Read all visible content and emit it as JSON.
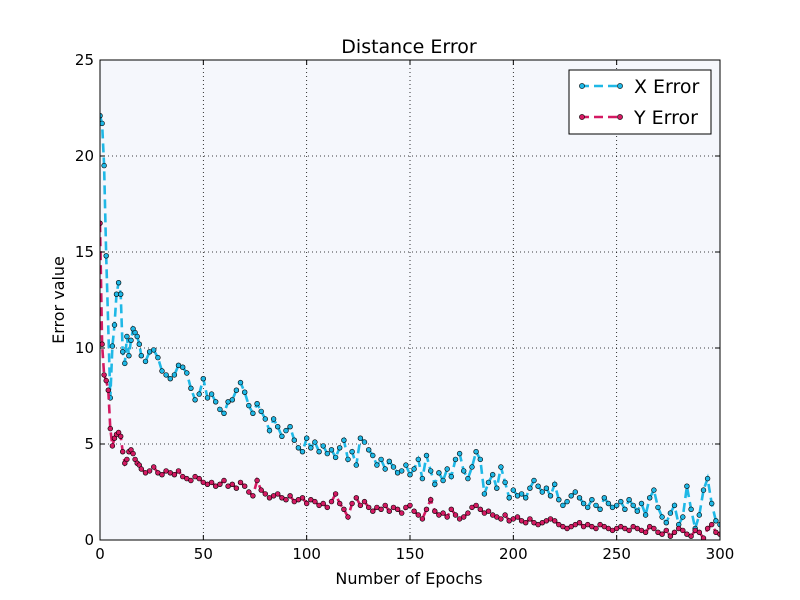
{
  "chart_data": {
    "type": "line",
    "title": "Distance Error",
    "xlabel": "Number of Epochs",
    "ylabel": "Error value",
    "xlim": [
      0,
      300
    ],
    "ylim": [
      0,
      25
    ],
    "xticks": [
      0,
      50,
      100,
      150,
      200,
      250,
      300
    ],
    "yticks": [
      0,
      5,
      10,
      15,
      20,
      25
    ],
    "grid": true,
    "legend_position": "top-right",
    "background_color": "#f5f7fc",
    "series": [
      {
        "name": "X Error",
        "color": "#1fb8e6",
        "marker_color": "#1a9cc6",
        "x": [
          0,
          1,
          2,
          3,
          5,
          6,
          7,
          8,
          9,
          10,
          11,
          12,
          13,
          14,
          15,
          16,
          17,
          18,
          19,
          20,
          22,
          24,
          26,
          28,
          30,
          32,
          34,
          36,
          38,
          40,
          42,
          44,
          46,
          48,
          50,
          52,
          54,
          56,
          58,
          60,
          62,
          64,
          66,
          68,
          70,
          72,
          74,
          76,
          78,
          80,
          82,
          84,
          86,
          88,
          90,
          92,
          94,
          96,
          98,
          100,
          102,
          104,
          106,
          108,
          110,
          112,
          114,
          116,
          118,
          120,
          122,
          124,
          126,
          128,
          130,
          132,
          134,
          136,
          138,
          140,
          142,
          144,
          146,
          148,
          150,
          152,
          154,
          156,
          158,
          160,
          162,
          164,
          166,
          168,
          170,
          172,
          174,
          176,
          178,
          180,
          182,
          184,
          186,
          188,
          190,
          192,
          194,
          196,
          198,
          200,
          202,
          204,
          206,
          208,
          210,
          212,
          214,
          216,
          218,
          220,
          222,
          224,
          226,
          228,
          230,
          232,
          234,
          236,
          238,
          240,
          242,
          244,
          246,
          248,
          250,
          252,
          254,
          256,
          258,
          260,
          262,
          264,
          266,
          268,
          270,
          272,
          274,
          276,
          278,
          280,
          282,
          284,
          286,
          288,
          290,
          292,
          294,
          296,
          298,
          300
        ],
        "values": [
          22.1,
          21.7,
          19.5,
          14.8,
          7.4,
          10.1,
          11.2,
          12.8,
          13.4,
          12.8,
          9.8,
          9.2,
          10.6,
          9.6,
          10.4,
          11.0,
          10.8,
          10.6,
          10.2,
          9.6,
          9.3,
          9.8,
          9.9,
          9.5,
          8.8,
          8.6,
          8.4,
          8.6,
          9.1,
          9.0,
          8.7,
          7.9,
          7.3,
          7.6,
          8.4,
          7.4,
          7.6,
          7.2,
          6.8,
          6.6,
          7.2,
          7.3,
          7.8,
          8.2,
          7.7,
          7.0,
          6.6,
          7.1,
          6.7,
          6.3,
          5.7,
          6.3,
          5.9,
          5.4,
          5.7,
          5.9,
          5.2,
          4.8,
          4.6,
          5.3,
          4.8,
          5.1,
          4.6,
          4.9,
          4.5,
          4.7,
          4.3,
          4.8,
          5.2,
          4.2,
          4.6,
          3.9,
          5.3,
          5.1,
          4.7,
          4.4,
          3.9,
          4.2,
          3.7,
          4.1,
          3.8,
          3.5,
          3.6,
          3.9,
          3.4,
          3.7,
          4.2,
          3.2,
          4.4,
          3.6,
          2.9,
          3.5,
          3.1,
          3.7,
          3.3,
          4.2,
          4.5,
          3.6,
          3.2,
          3.8,
          4.6,
          4.2,
          2.4,
          3.0,
          3.4,
          2.7,
          3.8,
          3.0,
          2.2,
          2.6,
          2.3,
          2.4,
          2.2,
          2.7,
          3.1,
          2.8,
          2.5,
          2.7,
          2.3,
          2.9,
          2.1,
          1.8,
          2.0,
          2.3,
          2.5,
          2.2,
          1.9,
          1.7,
          2.1,
          1.8,
          1.6,
          2.2,
          1.9,
          1.7,
          1.8,
          2.0,
          1.6,
          2.1,
          1.8,
          1.5,
          1.9,
          1.3,
          2.2,
          2.6,
          1.7,
          1.2,
          0.9,
          1.4,
          1.8,
          0.8,
          1.2,
          2.8,
          1.6,
          0.6,
          1.3,
          2.6,
          3.2,
          1.9,
          1.0,
          0.8
        ]
      },
      {
        "name": "Y Error",
        "color": "#d41a63",
        "marker_color": "#a8124c",
        "x": [
          0,
          1,
          2,
          3,
          4,
          5,
          6,
          7,
          8,
          9,
          10,
          11,
          12,
          13,
          14,
          15,
          16,
          17,
          18,
          19,
          20,
          22,
          24,
          26,
          28,
          30,
          32,
          34,
          36,
          38,
          40,
          42,
          44,
          46,
          48,
          50,
          52,
          54,
          56,
          58,
          60,
          62,
          64,
          66,
          68,
          70,
          72,
          74,
          76,
          78,
          80,
          82,
          84,
          86,
          88,
          90,
          92,
          94,
          96,
          98,
          100,
          102,
          104,
          106,
          108,
          110,
          112,
          114,
          116,
          118,
          120,
          122,
          124,
          126,
          128,
          130,
          132,
          134,
          136,
          138,
          140,
          142,
          144,
          146,
          148,
          150,
          152,
          154,
          156,
          158,
          160,
          162,
          164,
          166,
          168,
          170,
          172,
          174,
          176,
          178,
          180,
          182,
          184,
          186,
          188,
          190,
          192,
          194,
          196,
          198,
          200,
          202,
          204,
          206,
          208,
          210,
          212,
          214,
          216,
          218,
          220,
          222,
          224,
          226,
          228,
          230,
          232,
          234,
          236,
          238,
          240,
          242,
          244,
          246,
          248,
          250,
          252,
          254,
          256,
          258,
          260,
          262,
          264,
          266,
          268,
          270,
          272,
          274,
          276,
          278,
          280,
          282,
          284,
          286,
          288,
          290,
          292,
          294,
          296,
          298,
          300
        ],
        "values": [
          16.5,
          10.2,
          8.6,
          8.3,
          7.8,
          5.8,
          4.9,
          5.3,
          5.5,
          5.6,
          5.4,
          4.6,
          4.0,
          4.2,
          4.6,
          4.7,
          4.5,
          4.2,
          4.0,
          3.9,
          3.7,
          3.5,
          3.6,
          3.8,
          3.5,
          3.4,
          3.6,
          3.5,
          3.4,
          3.6,
          3.3,
          3.2,
          3.1,
          3.3,
          3.2,
          3.0,
          2.9,
          3.0,
          2.8,
          2.9,
          3.1,
          2.8,
          2.9,
          2.7,
          3.0,
          2.8,
          2.5,
          2.3,
          3.1,
          2.6,
          2.4,
          2.2,
          2.3,
          2.4,
          2.2,
          2.1,
          2.3,
          2.0,
          2.1,
          2.2,
          1.9,
          2.1,
          2.0,
          1.8,
          1.9,
          1.7,
          2.0,
          2.4,
          1.9,
          1.6,
          1.2,
          1.9,
          2.2,
          1.8,
          2.0,
          1.7,
          1.5,
          1.7,
          1.6,
          1.8,
          1.5,
          1.7,
          1.6,
          1.4,
          1.7,
          1.8,
          1.5,
          1.3,
          1.1,
          1.6,
          2.1,
          1.5,
          1.3,
          1.4,
          1.2,
          1.6,
          1.3,
          1.1,
          1.2,
          1.4,
          1.7,
          1.8,
          1.6,
          1.4,
          1.5,
          1.3,
          1.2,
          1.1,
          1.3,
          1.0,
          1.1,
          1.2,
          1.0,
          0.9,
          1.1,
          0.9,
          0.8,
          0.9,
          1.0,
          1.1,
          1.0,
          0.8,
          0.7,
          0.6,
          0.7,
          0.8,
          0.9,
          0.7,
          0.8,
          0.7,
          0.6,
          0.8,
          0.7,
          0.6,
          0.5,
          0.6,
          0.7,
          0.6,
          0.5,
          0.7,
          0.6,
          0.5,
          0.4,
          0.7,
          0.6,
          0.4,
          0.3,
          0.5,
          0.2,
          0.4,
          0.6,
          0.5,
          0.3,
          0.2,
          0.5,
          0.4,
          0.1,
          0.6,
          0.8,
          0.4,
          0.3
        ]
      }
    ]
  }
}
